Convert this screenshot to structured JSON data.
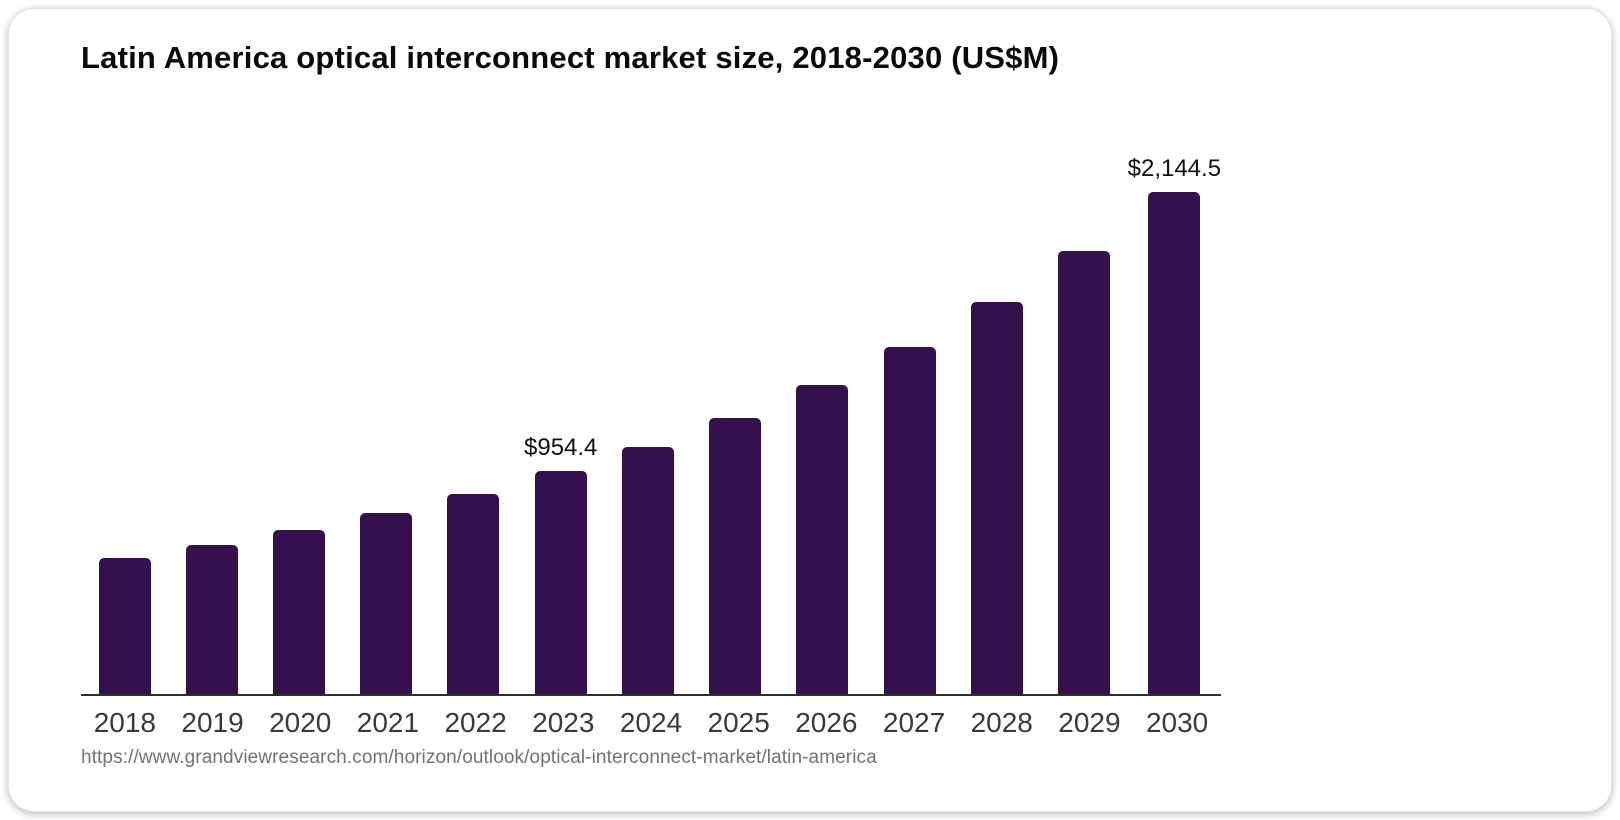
{
  "page": {
    "title": "Latin America optical interconnect market size, 2018-2030 (US$M)",
    "source_url": "https://www.grandviewresearch.com/horizon/outlook/optical-interconnect-market/latin-america"
  },
  "chart_data": {
    "type": "bar",
    "title": "Latin America optical interconnect market size, 2018-2030 (US$M)",
    "categories": [
      "2018",
      "2019",
      "2020",
      "2021",
      "2022",
      "2023",
      "2024",
      "2025",
      "2026",
      "2027",
      "2028",
      "2029",
      "2030"
    ],
    "values": [
      580,
      636,
      700,
      775,
      855,
      954.4,
      1056,
      1178,
      1322,
      1483,
      1673,
      1892,
      2144.5
    ],
    "labeled_points": [
      {
        "category": "2023",
        "label": "$954.4"
      },
      {
        "category": "2030",
        "label": "$2,144.5"
      }
    ],
    "xlabel": "",
    "ylabel": "",
    "ylim": [
      0,
      2320
    ],
    "grid": false,
    "legend": false,
    "bar_color": "#34104C",
    "axis_color": "#2f2f2f",
    "label_color": "#0f0f0f",
    "tick_label_color": "#3a3a3a"
  }
}
